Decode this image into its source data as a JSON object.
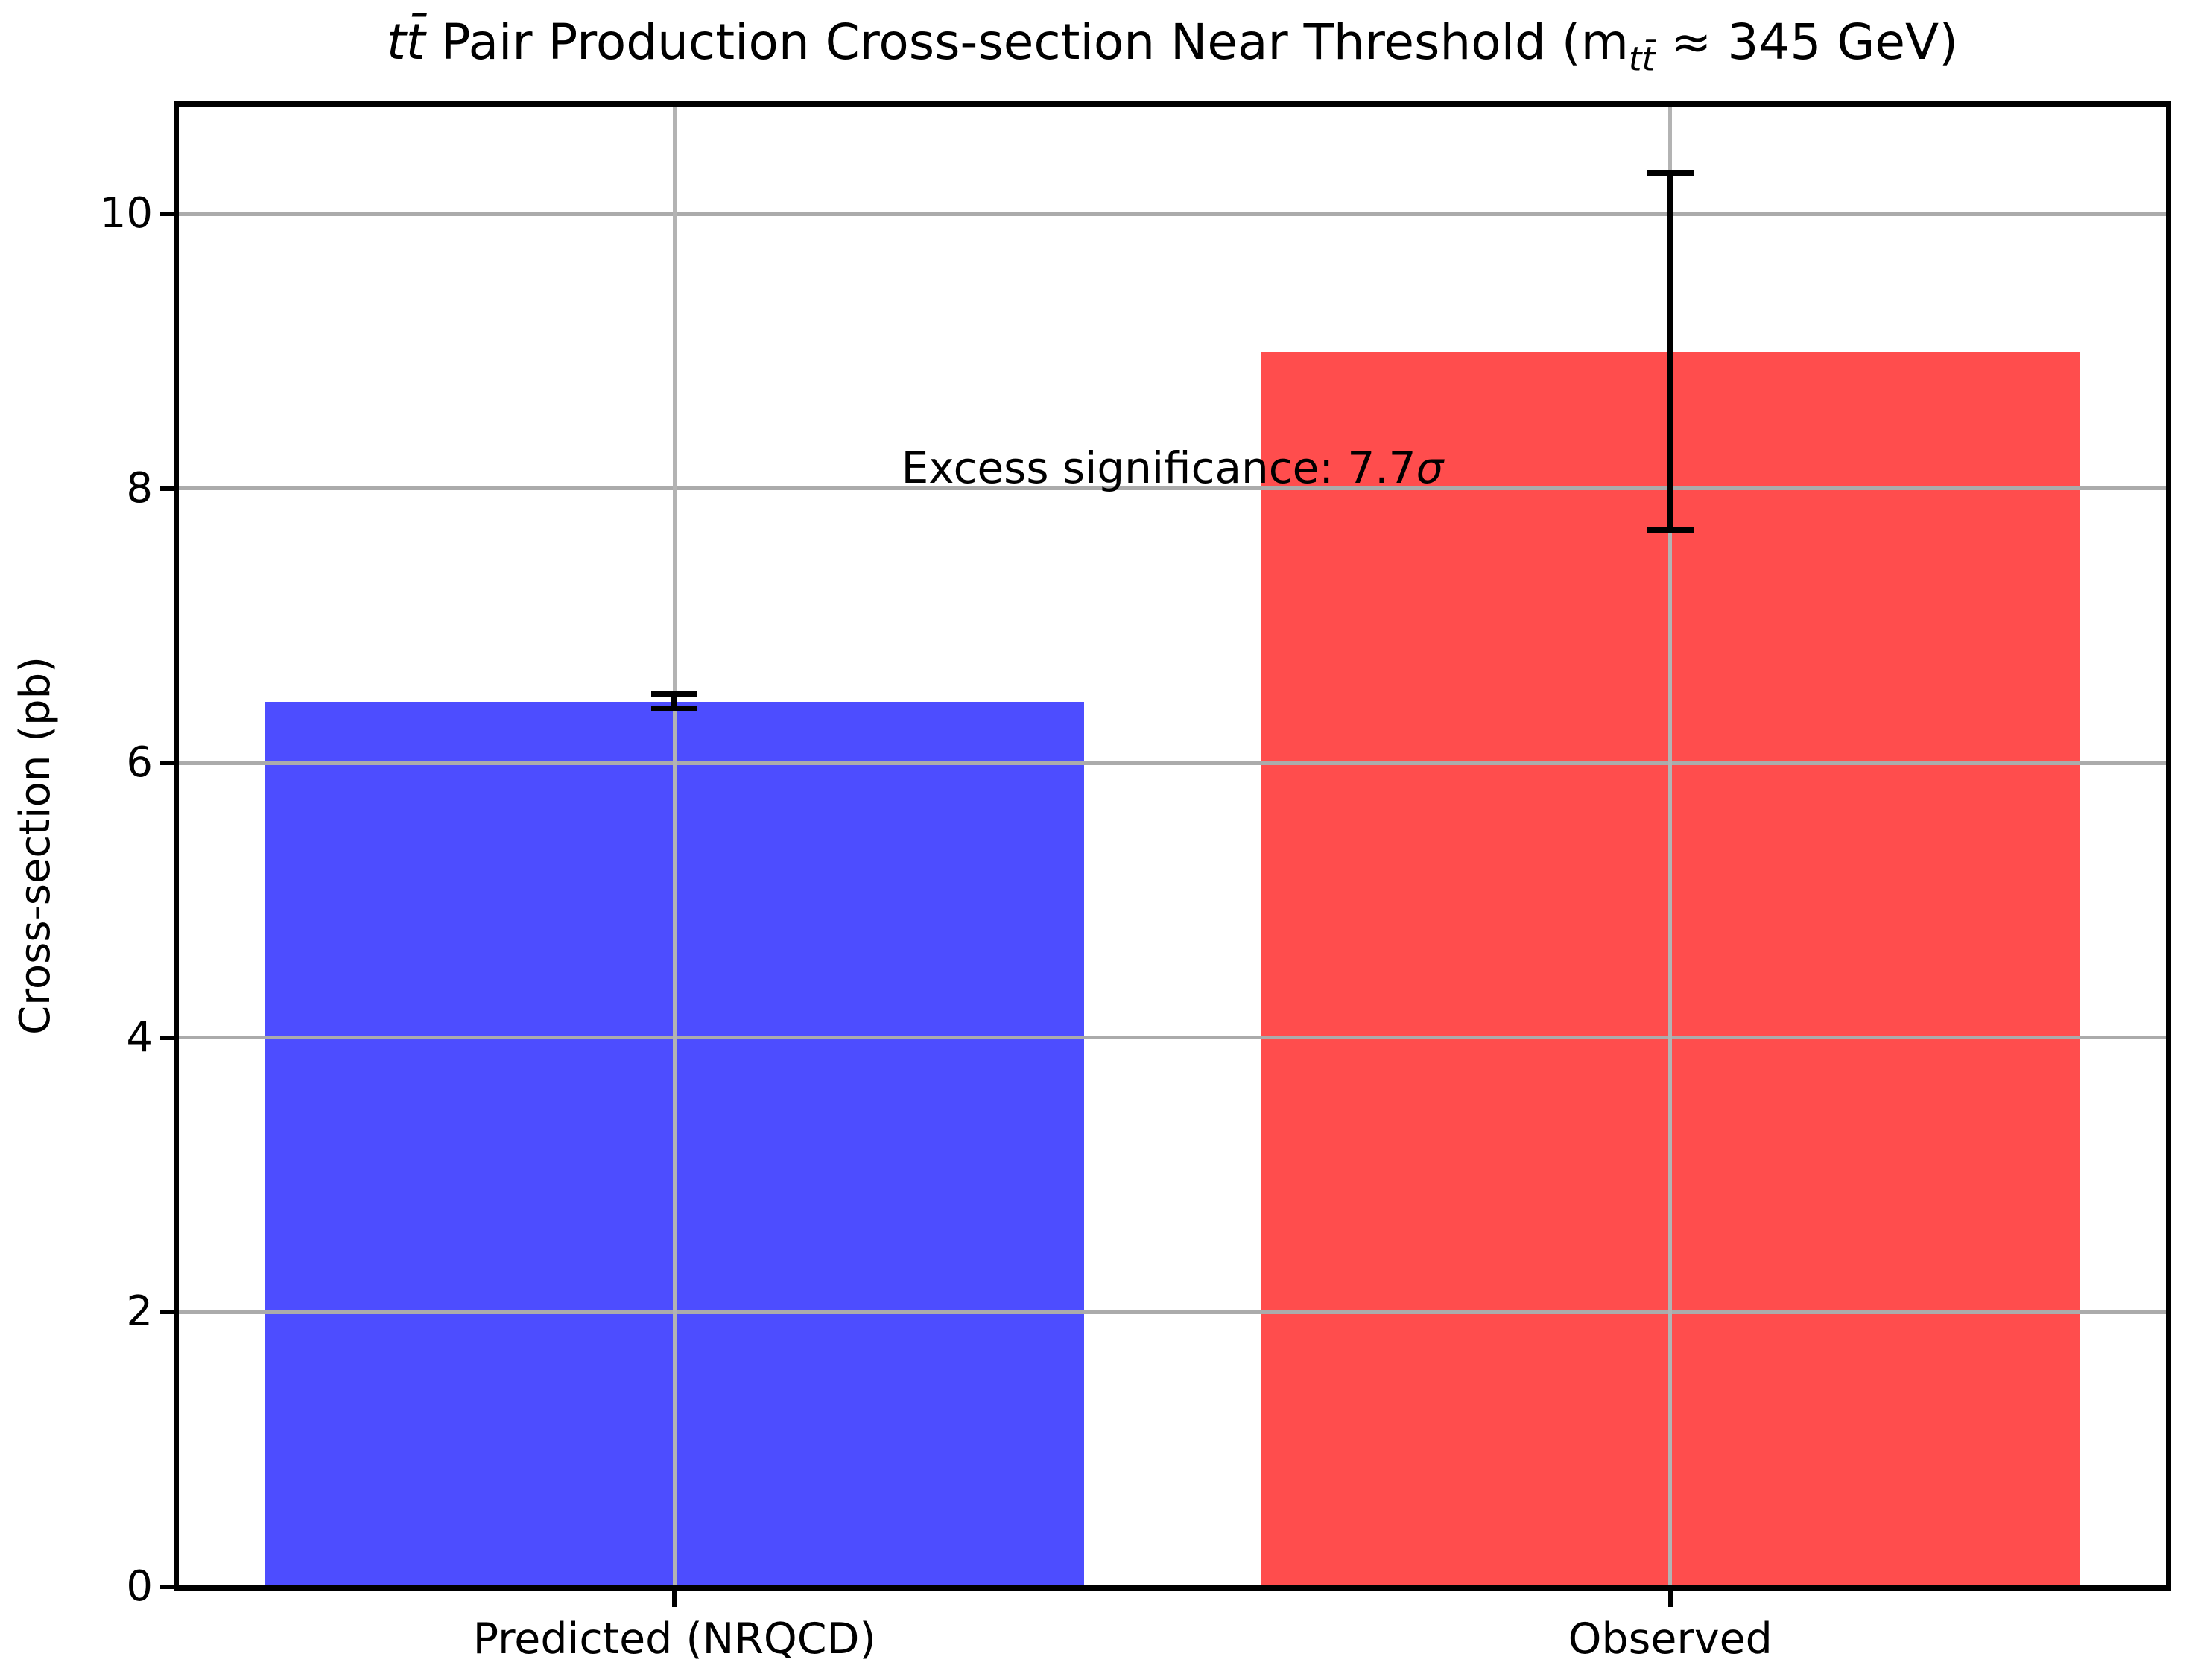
{
  "chart_data": {
    "type": "bar",
    "title": "tt̄ Pair Production Cross-section Near Threshold (m_tt̄ ≈ 345 GeV)",
    "title_parts": {
      "math_prefix": "tt̄",
      "main": " Pair Production Cross-section Near Threshold (m",
      "subscript": "tt̄",
      "suffix": " ≈ 345 GeV)"
    },
    "ylabel": "Cross-section (pb)",
    "xlabel": "",
    "categories": [
      "Predicted (NRQCD)",
      "Observed"
    ],
    "values": [
      6.45,
      9.0
    ],
    "errors": [
      0.05,
      1.3
    ],
    "bar_colors": [
      "#4D4DFF",
      "#FF4D4D"
    ],
    "error_bar_color": "#000000",
    "y_ticks": [
      0,
      2,
      4,
      6,
      8,
      10
    ],
    "ylim": [
      0,
      10.8
    ],
    "grid": true,
    "grid_color": "#ABABAB",
    "legend": "none",
    "annotation": {
      "text": "Excess significance: 7.7σ",
      "text_main": "Excess significance: 7.7",
      "sigma": "σ",
      "x_frac": 0.5,
      "y_value": 8.0
    }
  }
}
